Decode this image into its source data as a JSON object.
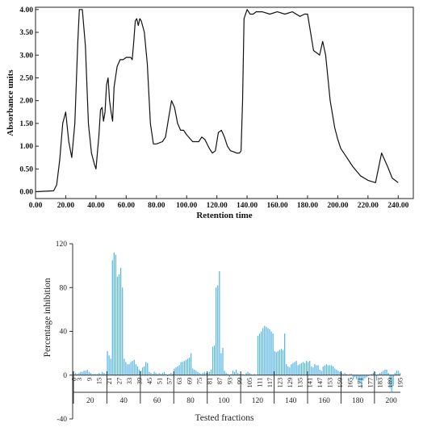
{
  "chart_data": [
    {
      "type": "line",
      "xlabel": "Retention time",
      "ylabel": "Absorbance units",
      "xlim": [
        0,
        250
      ],
      "ylim": [
        -0.15,
        4.05
      ],
      "x_ticks": [
        "0.00",
        "20.00",
        "40.00",
        "60.00",
        "80.00",
        "100.00",
        "120.00",
        "140.00",
        "160.00",
        "180.00",
        "200.00",
        "220.00",
        "240.00"
      ],
      "y_ticks": [
        "0.00",
        "0.50",
        "1.00",
        "1.50",
        "2.00",
        "2.50",
        "3.00",
        "3.50",
        "4.00"
      ],
      "grid": false,
      "series": [
        {
          "x": [
            0,
            12,
            14,
            16,
            18,
            20,
            22,
            24,
            26,
            28,
            29,
            31,
            33,
            35,
            37,
            39,
            40,
            42,
            43,
            44,
            45,
            46,
            47,
            48,
            49,
            50,
            51,
            52,
            54,
            56,
            58,
            60,
            62,
            63,
            64,
            65,
            66,
            67,
            68,
            69,
            70,
            72,
            74,
            76,
            78,
            80,
            84,
            86,
            88,
            90,
            92,
            94,
            96,
            98,
            100,
            104,
            108,
            110,
            112,
            115,
            117,
            119,
            121,
            123,
            125,
            127,
            129,
            131,
            133,
            135,
            136,
            137,
            138,
            140,
            142,
            144,
            146,
            150,
            155,
            160,
            165,
            170,
            175,
            178,
            180,
            182,
            184,
            186,
            188,
            190,
            192,
            195,
            198,
            200,
            202,
            205,
            210,
            215,
            220,
            225,
            229,
            233,
            236,
            240
          ],
          "y": [
            0.0,
            0.02,
            0.15,
            0.7,
            1.5,
            1.75,
            1.1,
            0.75,
            1.5,
            3.3,
            4.0,
            4.0,
            3.2,
            1.5,
            0.85,
            0.6,
            0.5,
            1.25,
            1.8,
            1.85,
            1.55,
            1.75,
            2.35,
            2.5,
            2.0,
            1.75,
            1.55,
            2.3,
            2.75,
            2.9,
            2.9,
            2.95,
            2.95,
            2.95,
            2.9,
            3.3,
            3.75,
            3.8,
            3.65,
            3.8,
            3.75,
            3.5,
            2.8,
            1.5,
            1.05,
            1.05,
            1.1,
            1.2,
            1.6,
            2.0,
            1.85,
            1.5,
            1.35,
            1.35,
            1.25,
            1.1,
            1.1,
            1.2,
            1.15,
            0.95,
            0.85,
            0.9,
            1.3,
            1.35,
            1.2,
            1.0,
            0.9,
            0.88,
            0.85,
            0.85,
            0.9,
            2.0,
            3.8,
            4.0,
            3.9,
            3.9,
            3.95,
            3.95,
            3.9,
            3.95,
            3.9,
            3.95,
            3.85,
            3.9,
            3.9,
            3.5,
            3.1,
            3.05,
            3.0,
            3.3,
            3.0,
            2.0,
            1.4,
            1.15,
            0.95,
            0.8,
            0.55,
            0.35,
            0.25,
            0.2,
            0.85,
            0.55,
            0.3,
            0.2
          ]
        }
      ]
    },
    {
      "type": "bar",
      "xlabel": "Tested fractions",
      "ylabel": "Percentage inhibition",
      "ylim": [
        -40,
        120
      ],
      "y_ticks": [
        "-40",
        "0",
        "40",
        "80",
        "120"
      ],
      "x_ticks": [
        "0",
        "3",
        "9",
        "15",
        "21",
        "27",
        "33",
        "39",
        "45",
        "51",
        "57",
        "63",
        "69",
        "75",
        "81",
        "87",
        "93",
        "99",
        "105",
        "111",
        "117",
        "123",
        "129",
        "135",
        "141",
        "147",
        "153",
        "159",
        "165",
        "171",
        "177",
        "183",
        "189",
        "195"
      ],
      "group_labels": [
        "20",
        "40",
        "60",
        "80",
        "100",
        "120",
        "140",
        "160",
        "180",
        "200"
      ],
      "grid": false,
      "values": [
        1,
        2,
        1,
        2,
        3,
        3,
        4,
        4,
        5,
        3,
        2,
        1,
        1,
        1,
        1,
        2,
        1,
        3,
        2,
        1,
        22,
        18,
        15,
        105,
        112,
        110,
        90,
        92,
        98,
        80,
        15,
        12,
        10,
        10,
        12,
        13,
        14,
        10,
        8,
        5,
        4,
        7,
        8,
        12,
        11,
        3,
        2,
        1,
        3,
        2,
        1,
        2,
        1,
        2,
        3,
        1,
        -1,
        1,
        2,
        1,
        6,
        7,
        8,
        9,
        12,
        12,
        13,
        14,
        15,
        16,
        20,
        6,
        5,
        4,
        3,
        2,
        1,
        2,
        3,
        2,
        2,
        3,
        5,
        26,
        27,
        80,
        82,
        95,
        20,
        25,
        4,
        2,
        1,
        -2,
        1,
        4,
        3,
        5,
        2,
        1,
        1,
        1,
        0,
        2,
        3,
        2,
        1,
        0,
        1,
        0,
        36,
        38,
        40,
        43,
        45,
        44,
        43,
        42,
        40,
        38,
        22,
        21,
        22,
        23,
        24,
        23,
        38,
        10,
        8,
        7,
        10,
        11,
        12,
        13,
        9,
        10,
        11,
        12,
        11,
        13,
        12,
        13,
        8,
        7,
        10,
        9,
        9,
        5,
        4,
        8,
        9,
        10,
        9,
        9,
        9,
        8,
        6,
        5,
        4,
        3,
        2,
        1,
        2,
        1,
        0,
        1,
        1,
        -4,
        -2,
        -4,
        -6,
        -8,
        -12,
        -5,
        -3,
        -2,
        -1,
        0,
        1,
        2,
        3,
        -5,
        1,
        2,
        3,
        4,
        5,
        5,
        2,
        -12,
        -15,
        -10,
        2,
        4,
        4,
        2
      ]
    }
  ]
}
